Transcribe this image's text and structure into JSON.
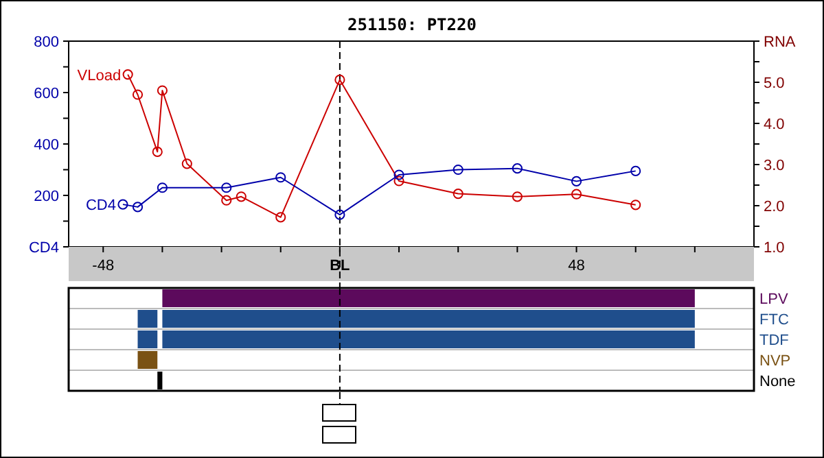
{
  "chart_data": [
    {
      "type": "line",
      "title": "251150: PT220",
      "xlim": [
        -55,
        84
      ],
      "xticks": [
        -48,
        {
          "value": -36,
          "label": null
        },
        {
          "value": -24,
          "label": null
        },
        {
          "value": -12,
          "label": null
        },
        {
          "value": 0,
          "label": "BL"
        },
        {
          "value": 12,
          "label": null
        },
        {
          "value": 24,
          "label": null
        },
        {
          "value": 36,
          "label": null
        },
        48,
        {
          "value": 60,
          "label": null
        },
        {
          "value": 72,
          "label": null
        }
      ],
      "ylim": [
        0,
        800
      ],
      "yticks": [
        {
          "value": 0,
          "label": "CD4"
        },
        {
          "value": 100,
          "label": null
        },
        200,
        {
          "value": 300,
          "label": null
        },
        400,
        {
          "value": 500,
          "label": null
        },
        600,
        {
          "value": 700,
          "label": null
        },
        800
      ],
      "y2lim": [
        1,
        6
      ],
      "y2ticks": [
        {
          "value": 1,
          "label": "1.0"
        },
        {
          "value": 1.5,
          "label": null
        },
        {
          "value": 2,
          "label": "2.0"
        },
        {
          "value": 2.5,
          "label": null
        },
        {
          "value": 3,
          "label": "3.0"
        },
        {
          "value": 3.5,
          "label": null
        },
        {
          "value": 4,
          "label": "4.0"
        },
        {
          "value": 4.5,
          "label": null
        },
        {
          "value": 5,
          "label": "5.0"
        },
        {
          "value": 5.5,
          "label": null
        },
        {
          "value": 6,
          "label": "RNA"
        }
      ],
      "marker": "circle",
      "line_style": "solid",
      "legend": false,
      "series": [
        {
          "name": "VLoad",
          "color": "#cc0000",
          "axis": "y2",
          "x": [
            -43,
            -41,
            -37,
            -36,
            -31,
            -23,
            -20,
            -12,
            0,
            12,
            24,
            36,
            48,
            60
          ],
          "values": [
            5.19,
            4.7,
            3.31,
            4.8,
            3.02,
            2.13,
            2.22,
            1.72,
            5.06,
            2.6,
            2.29,
            2.22,
            2.28,
            2.02
          ]
        },
        {
          "name": "CD4",
          "color": "#0000aa",
          "x": [
            -44,
            -41,
            -36,
            -23,
            -12,
            0,
            12,
            24,
            36,
            48,
            60
          ],
          "values": [
            165,
            155,
            230,
            230,
            270,
            125,
            280,
            300,
            305,
            255,
            295
          ]
        }
      ],
      "ref_lines": [
        {
          "axis": "x",
          "value": 0,
          "line_style": "dashed",
          "color": "#000000"
        }
      ]
    },
    {
      "type": "bar",
      "orientation": "horizontal",
      "categories": [
        "LPV",
        "FTC",
        "TDF",
        "NVP",
        "None"
      ],
      "xlim": [
        -55,
        84
      ],
      "tick_labels": "y",
      "grid": "y",
      "series": [
        {
          "values": [
            108,
            108,
            108,
            null,
            null
          ],
          "base": [
            -36,
            -36,
            -36,
            null,
            null
          ],
          "colors": [
            "#5c0a5c",
            "#1f4e8c",
            "#1f4e8c",
            null,
            null
          ]
        },
        {
          "values": [
            null,
            4,
            4,
            4,
            1
          ],
          "base": [
            null,
            -41,
            -41,
            -41,
            -37
          ],
          "colors": [
            null,
            "#1f4e8c",
            "#1f4e8c",
            "#7a5214",
            "#000000"
          ]
        }
      ],
      "ref_lines": [
        {
          "axis": "x",
          "value": 0,
          "line_style": "dashed",
          "color": "#000000"
        }
      ]
    }
  ]
}
